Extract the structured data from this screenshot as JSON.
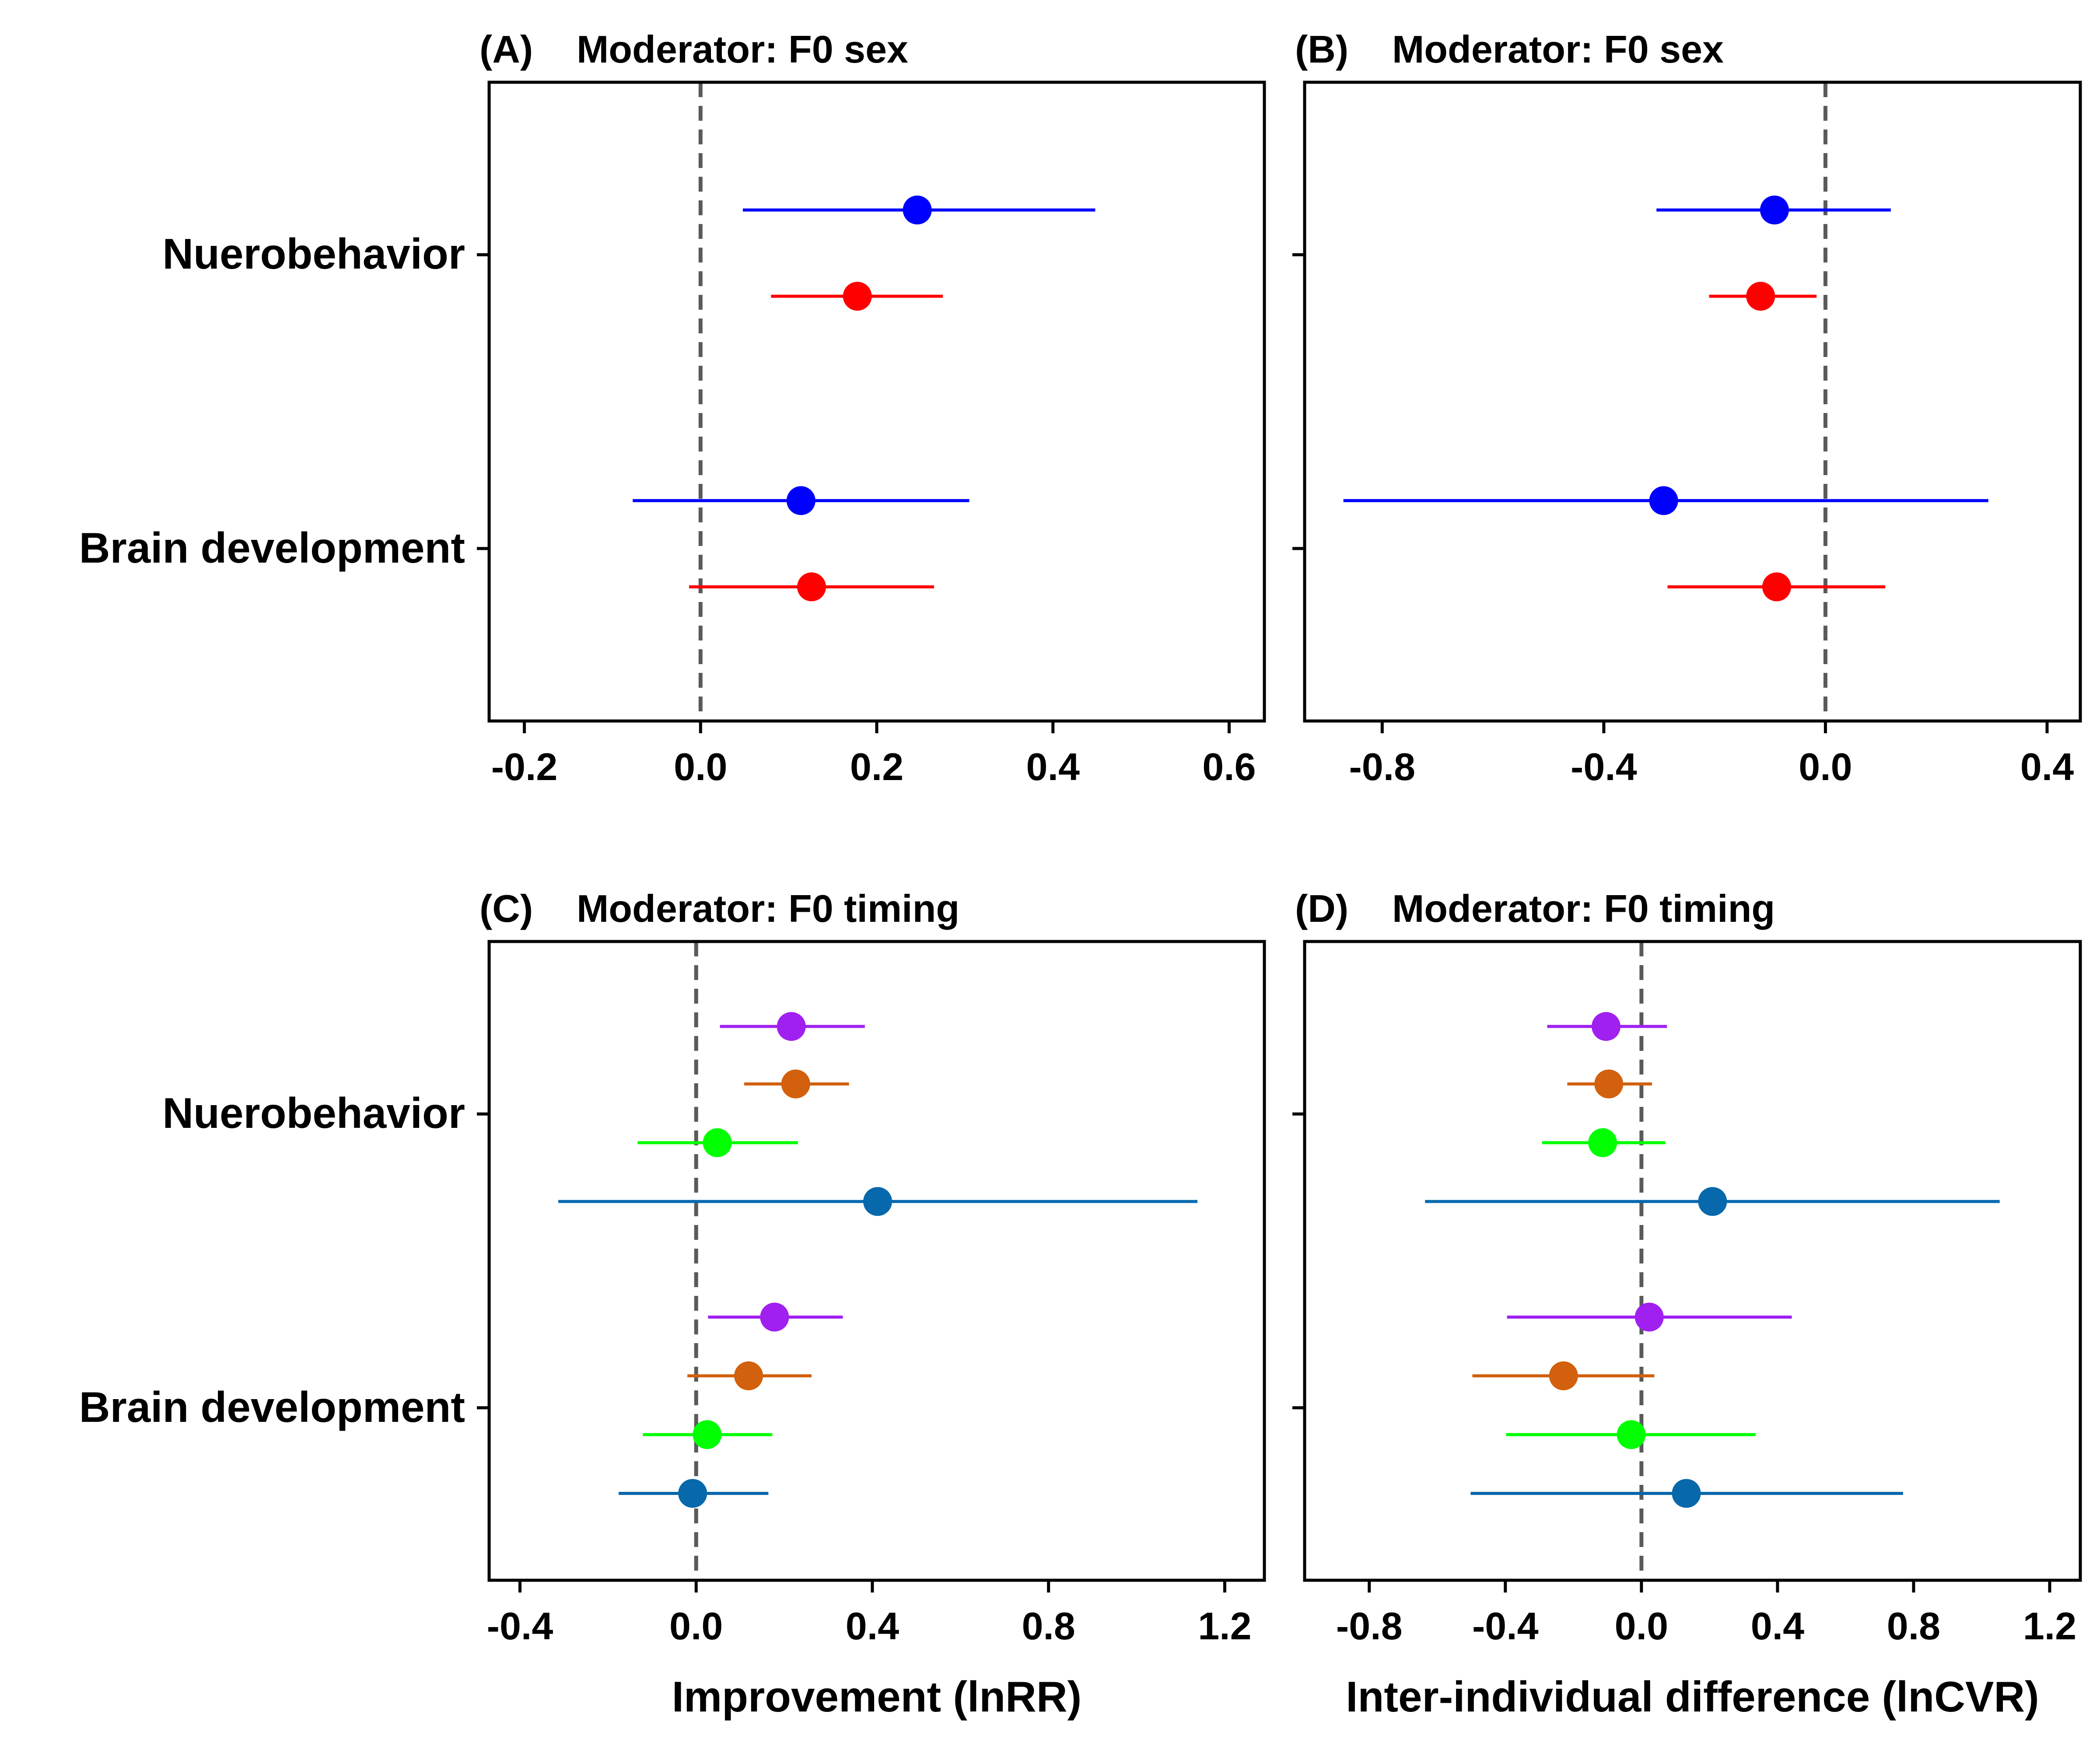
{
  "chart_data": [
    {
      "panel": "A",
      "type": "forest",
      "label": "(A)",
      "title": "Moderator: F0 sex",
      "xlim": [
        -0.24,
        0.64
      ],
      "xticks": [
        "-0.2",
        "0.0",
        "0.2",
        "0.4",
        "0.6"
      ],
      "xlabel": "",
      "categories": [
        "Nuerobehavior",
        "Brain development"
      ],
      "show_ylabels": true,
      "series": [
        {
          "color": "#0000ff",
          "category": "Nuerobehavior",
          "est": 0.246,
          "lo": 0.048,
          "hi": 0.448
        },
        {
          "color": "#ff0000",
          "category": "Nuerobehavior",
          "est": 0.178,
          "lo": 0.08,
          "hi": 0.275
        },
        {
          "color": "#0000ff",
          "category": "Brain development",
          "est": 0.114,
          "lo": -0.077,
          "hi": 0.305
        },
        {
          "color": "#ff0000",
          "category": "Brain development",
          "est": 0.126,
          "lo": -0.013,
          "hi": 0.265
        }
      ]
    },
    {
      "panel": "B",
      "type": "forest",
      "label": "(B)",
      "title": "Moderator: F0 sex",
      "xlim": [
        -0.94,
        0.46
      ],
      "xticks": [
        "-0.8",
        "-0.4",
        "0.0",
        "0.4"
      ],
      "xlabel": "",
      "categories": [
        "Nuerobehavior",
        "Brain development"
      ],
      "show_ylabels": false,
      "series": [
        {
          "color": "#0000ff",
          "category": "Nuerobehavior",
          "est": -0.092,
          "lo": -0.305,
          "hi": 0.118
        },
        {
          "color": "#ff0000",
          "category": "Nuerobehavior",
          "est": -0.117,
          "lo": -0.21,
          "hi": -0.016
        },
        {
          "color": "#0000ff",
          "category": "Brain development",
          "est": -0.292,
          "lo": -0.87,
          "hi": 0.294
        },
        {
          "color": "#ff0000",
          "category": "Brain development",
          "est": -0.088,
          "lo": -0.285,
          "hi": 0.108
        }
      ]
    },
    {
      "panel": "C",
      "type": "forest",
      "label": "(C)",
      "title": "Moderator: F0 timing",
      "xlim": [
        -0.47,
        1.29
      ],
      "xticks": [
        "-0.4",
        "0.0",
        "0.4",
        "0.8",
        "1.2"
      ],
      "xlabel": "Improvement (lnRR)",
      "categories": [
        "Nuerobehavior",
        "Brain development"
      ],
      "show_ylabels": true,
      "series": [
        {
          "color": "#a020f0",
          "category": "Nuerobehavior",
          "est": 0.216,
          "lo": 0.054,
          "hi": 0.383
        },
        {
          "color": "#d2600c",
          "category": "Nuerobehavior",
          "est": 0.226,
          "lo": 0.109,
          "hi": 0.347
        },
        {
          "color": "#00ff00",
          "category": "Nuerobehavior",
          "est": 0.048,
          "lo": -0.133,
          "hi": 0.231
        },
        {
          "color": "#0868ac",
          "category": "Nuerobehavior",
          "est": 0.412,
          "lo": -0.313,
          "hi": 1.138
        },
        {
          "color": "#a020f0",
          "category": "Brain development",
          "est": 0.178,
          "lo": 0.027,
          "hi": 0.333
        },
        {
          "color": "#d2600c",
          "category": "Brain development",
          "est": 0.119,
          "lo": -0.02,
          "hi": 0.262
        },
        {
          "color": "#00ff00",
          "category": "Brain development",
          "est": 0.025,
          "lo": -0.121,
          "hi": 0.173
        },
        {
          "color": "#0868ac",
          "category": "Brain development",
          "est": -0.008,
          "lo": -0.176,
          "hi": 0.164
        }
      ]
    },
    {
      "panel": "D",
      "type": "forest",
      "label": "(D)",
      "title": "Moderator: F0 timing",
      "xlim": [
        -0.99,
        1.29
      ],
      "xticks": [
        "-0.8",
        "-0.4",
        "0.0",
        "0.4",
        "0.8",
        "1.2"
      ],
      "xlabel": "Inter-individual difference (lnCVR)",
      "categories": [
        "Nuerobehavior",
        "Brain development"
      ],
      "show_ylabels": false,
      "series": [
        {
          "color": "#a020f0",
          "category": "Nuerobehavior",
          "est": -0.104,
          "lo": -0.277,
          "hi": 0.075
        },
        {
          "color": "#d2600c",
          "category": "Nuerobehavior",
          "est": -0.096,
          "lo": -0.218,
          "hi": 0.031
        },
        {
          "color": "#00ff00",
          "category": "Nuerobehavior",
          "est": -0.114,
          "lo": -0.292,
          "hi": 0.07
        },
        {
          "color": "#0868ac",
          "category": "Nuerobehavior",
          "est": 0.209,
          "lo": -0.636,
          "hi": 1.053
        },
        {
          "color": "#a020f0",
          "category": "Brain development",
          "est": 0.023,
          "lo": -0.395,
          "hi": 0.442
        },
        {
          "color": "#d2600c",
          "category": "Brain development",
          "est": -0.229,
          "lo": -0.497,
          "hi": 0.038
        },
        {
          "color": "#00ff00",
          "category": "Brain development",
          "est": -0.03,
          "lo": -0.398,
          "hi": 0.336
        },
        {
          "color": "#0868ac",
          "category": "Brain development",
          "est": 0.132,
          "lo": -0.502,
          "hi": 0.769
        }
      ]
    }
  ]
}
